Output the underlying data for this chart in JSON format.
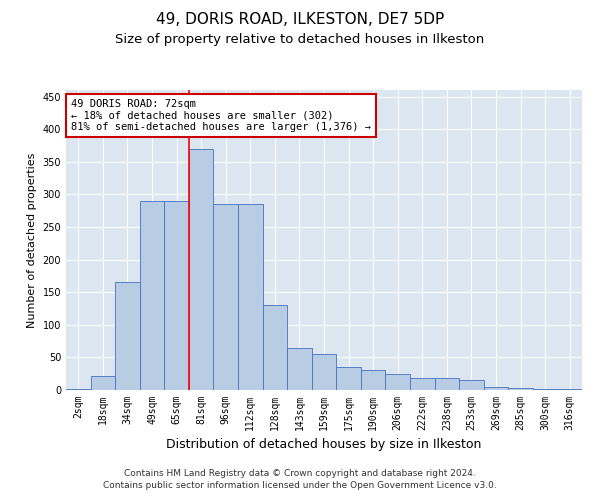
{
  "title1": "49, DORIS ROAD, ILKESTON, DE7 5DP",
  "title2": "Size of property relative to detached houses in Ilkeston",
  "xlabel": "Distribution of detached houses by size in Ilkeston",
  "ylabel": "Number of detached properties",
  "categories": [
    "2sqm",
    "18sqm",
    "34sqm",
    "49sqm",
    "65sqm",
    "81sqm",
    "96sqm",
    "112sqm",
    "128sqm",
    "143sqm",
    "159sqm",
    "175sqm",
    "190sqm",
    "206sqm",
    "222sqm",
    "238sqm",
    "253sqm",
    "269sqm",
    "285sqm",
    "300sqm",
    "316sqm"
  ],
  "values": [
    1,
    22,
    165,
    290,
    290,
    370,
    285,
    285,
    130,
    65,
    55,
    35,
    30,
    25,
    18,
    18,
    15,
    5,
    3,
    2,
    1
  ],
  "bar_color": "#b8cce4",
  "bar_edge_color": "#4472c4",
  "red_line_x": 4.5,
  "annotation_line1": "49 DORIS ROAD: 72sqm",
  "annotation_line2": "← 18% of detached houses are smaller (302)",
  "annotation_line3": "81% of semi-detached houses are larger (1,376) →",
  "annotation_box_color": "#ffffff",
  "annotation_box_edge": "#cc0000",
  "ylim": [
    0,
    460
  ],
  "yticks": [
    0,
    50,
    100,
    150,
    200,
    250,
    300,
    350,
    400,
    450
  ],
  "bg_color": "#dce6f1",
  "footer1": "Contains HM Land Registry data © Crown copyright and database right 2024.",
  "footer2": "Contains public sector information licensed under the Open Government Licence v3.0.",
  "title1_fontsize": 11,
  "title2_fontsize": 9.5,
  "xlabel_fontsize": 9,
  "ylabel_fontsize": 8,
  "tick_fontsize": 7,
  "annotation_fontsize": 7.5,
  "footer_fontsize": 6.5
}
